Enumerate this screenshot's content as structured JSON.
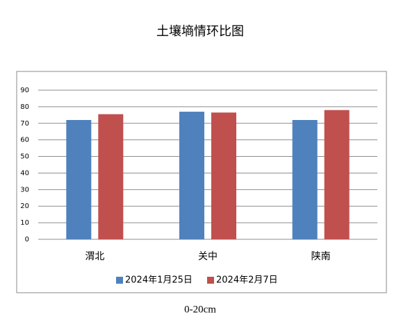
{
  "chart_data": {
    "type": "bar",
    "title": "土壤墒情环比图",
    "categories": [
      "渭北",
      "关中",
      "陕南"
    ],
    "series": [
      {
        "name": "2024年1月25日",
        "color": "#4f81bd",
        "values": [
          72,
          77,
          72
        ]
      },
      {
        "name": "2024年2月7日",
        "color": "#c0504d",
        "values": [
          75.5,
          76.5,
          78
        ]
      }
    ],
    "ylim": [
      0,
      90
    ],
    "yticks": [
      0,
      10,
      20,
      30,
      40,
      50,
      60,
      70,
      80,
      90
    ],
    "grid": true,
    "legend": "bottom",
    "caption": "0-20cm"
  }
}
